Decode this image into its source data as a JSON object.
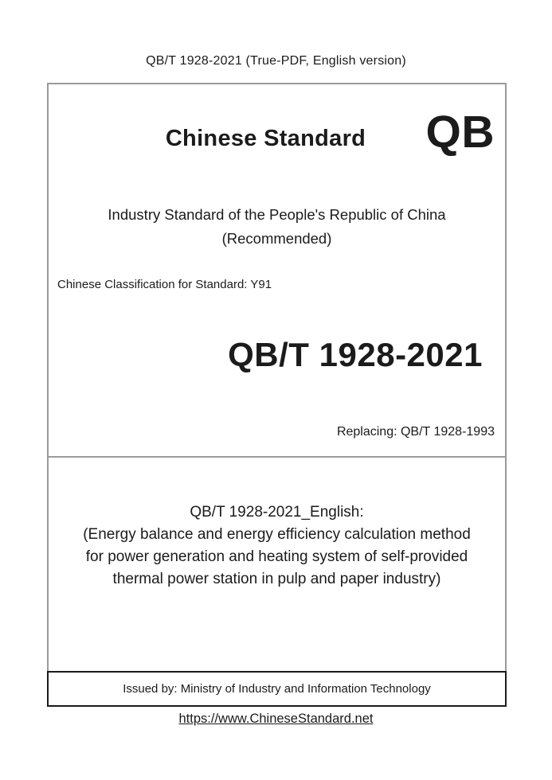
{
  "page": {
    "header_title": "QB/T 1928-2021 (True-PDF, English version)",
    "site_link": "https://www.ChineseStandard.net"
  },
  "cover": {
    "brand_title": "Chinese Standard",
    "brand_logo": "QB",
    "subtitle_line1": "Industry Standard of the People's Republic of China",
    "subtitle_line2": "(Recommended)",
    "classification": "Chinese Classification for Standard: Y91",
    "standard_number": "QB/T 1928-2021",
    "replacing": "Replacing: QB/T 1928-1993",
    "english_title_line1": "QB/T 1928-2021_English:",
    "english_title_line2": "(Energy balance and energy efficiency calculation method",
    "english_title_line3": "for power generation and heating system of self-provided",
    "english_title_line4": "thermal power station in pulp and paper industry)",
    "issued_by": "Issued by: Ministry of Industry and Information Technology"
  },
  "colors": {
    "outer_border": "#9a9a9a",
    "issued_border": "#1a1a1a",
    "text": "#1b1b1b"
  }
}
